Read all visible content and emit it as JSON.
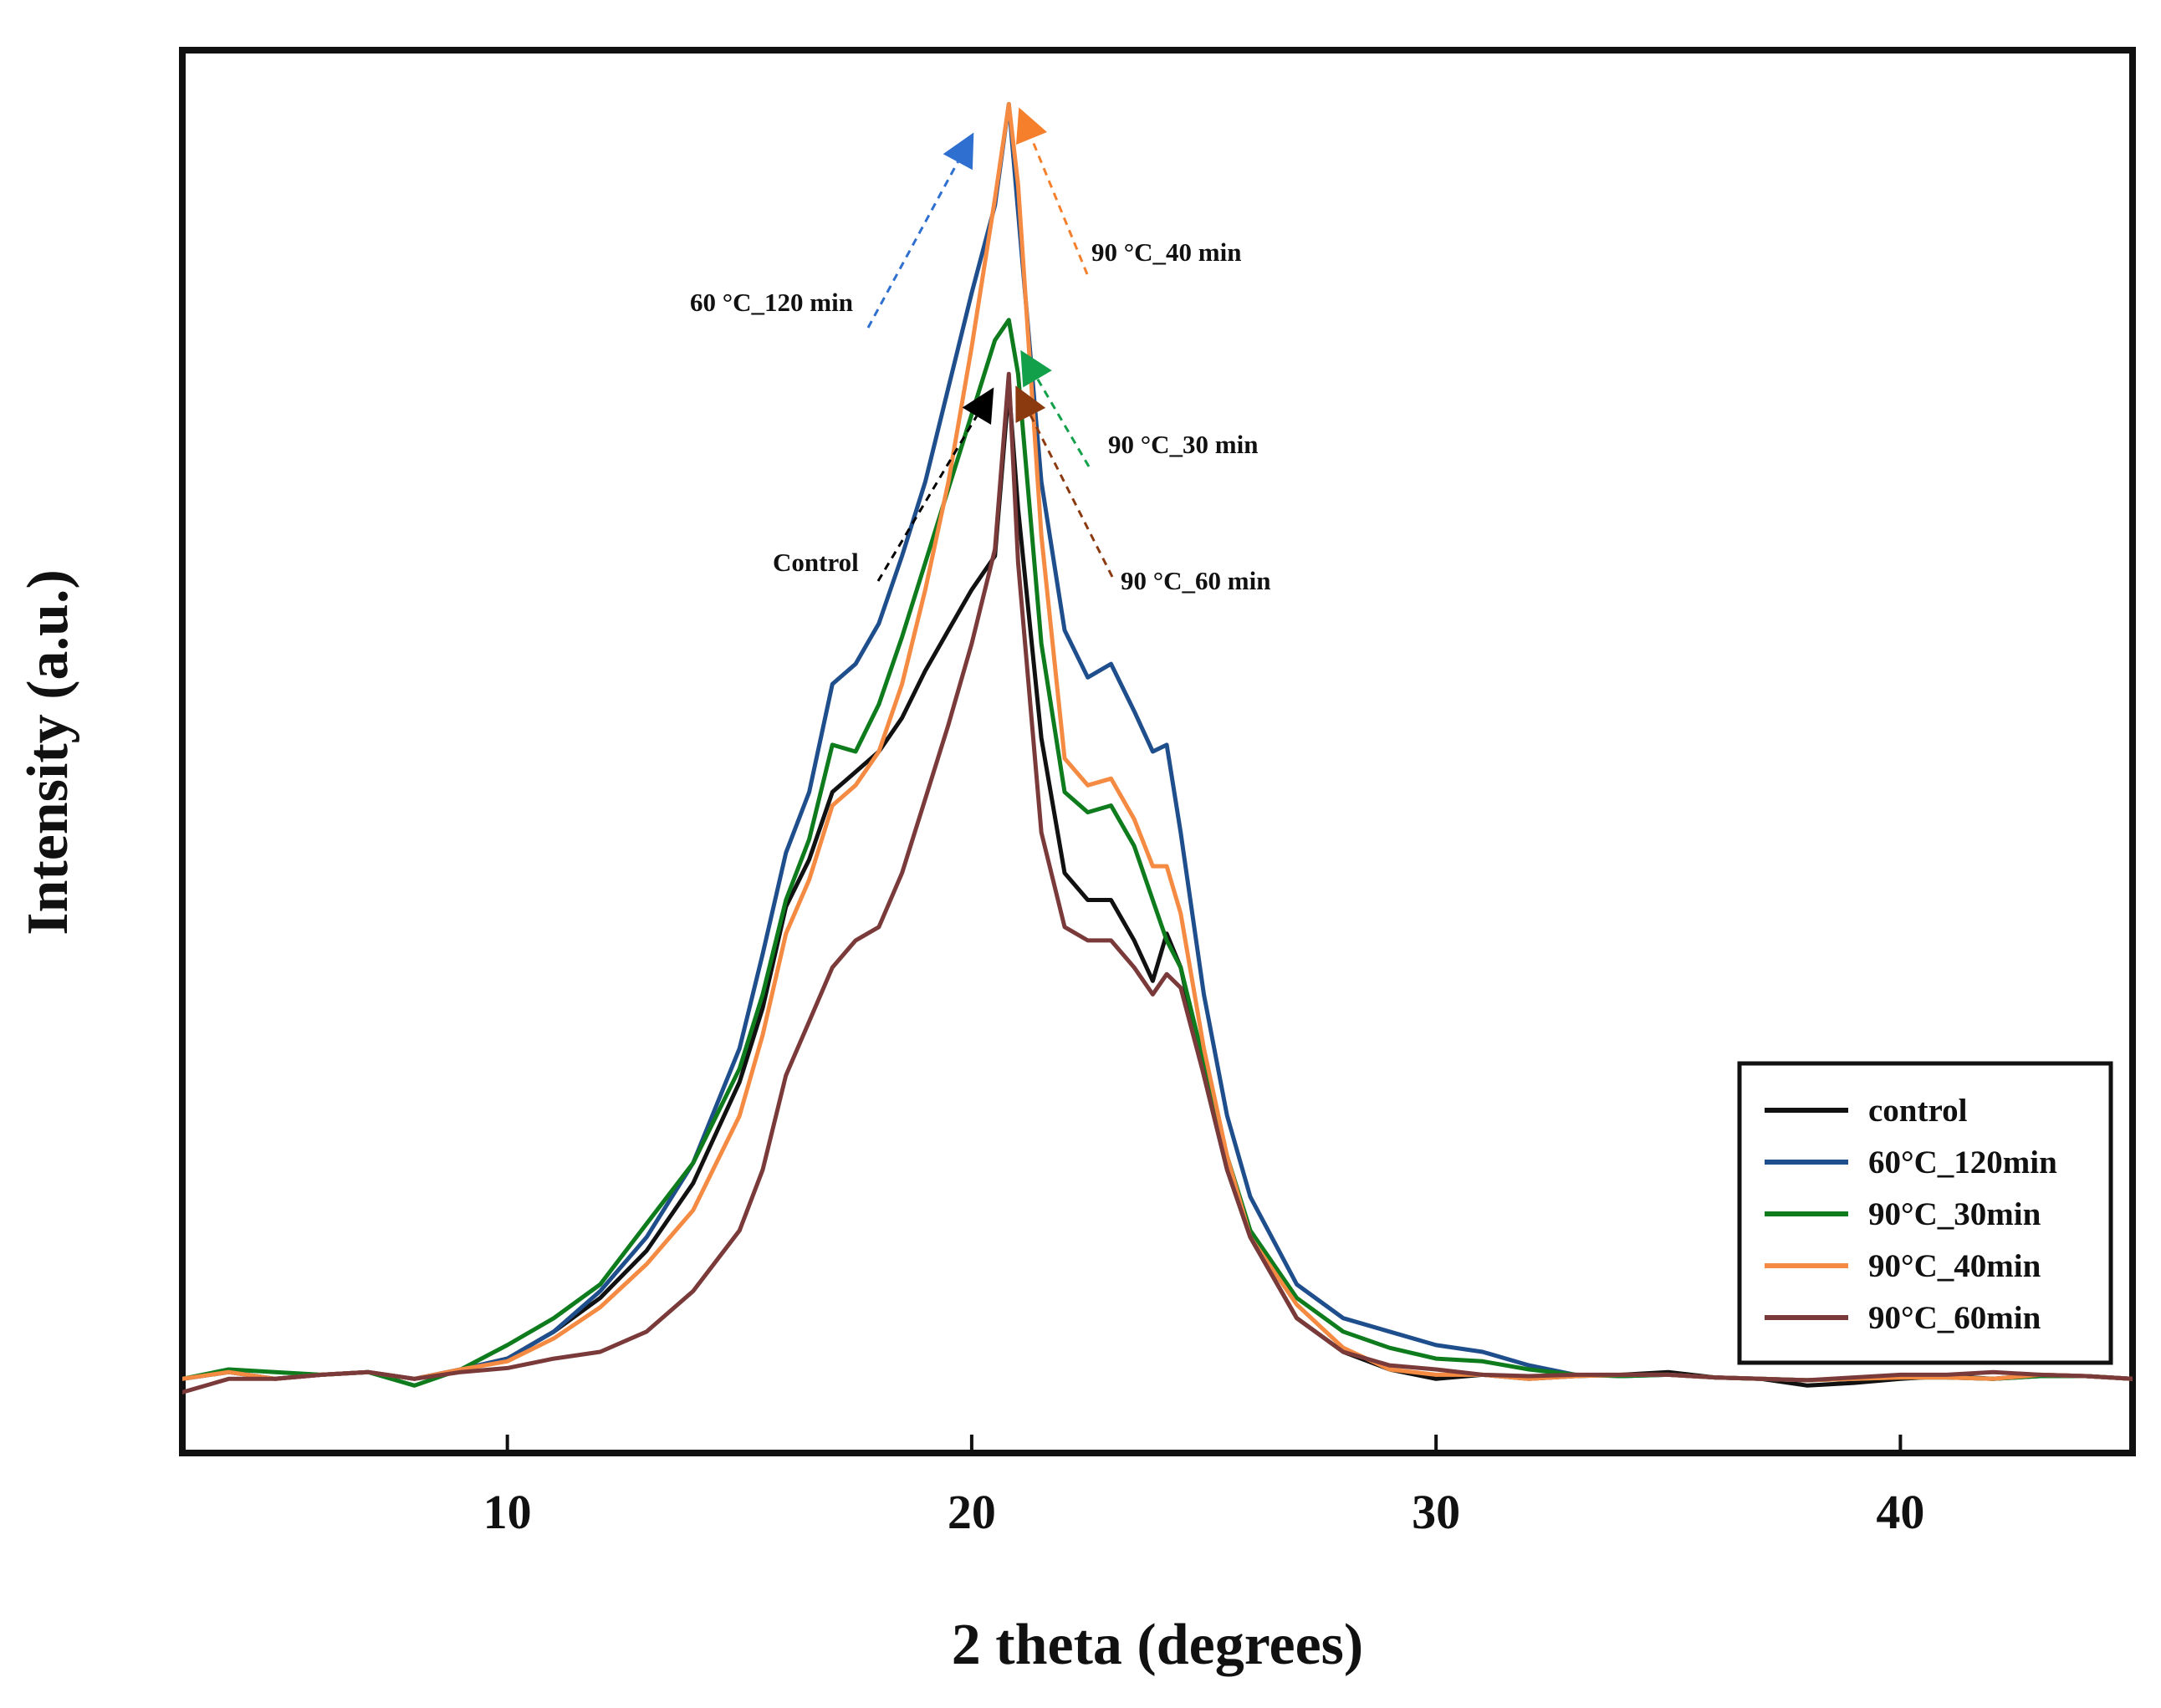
{
  "chart_data": {
    "type": "line",
    "title": "",
    "xlabel": "2 theta (degrees)",
    "ylabel": "Intensity (a.u.)",
    "xlim": [
      3,
      45
    ],
    "ylim": [
      0,
      1.04
    ],
    "xticks": [
      10,
      20,
      30,
      40
    ],
    "yticks": [],
    "grid": false,
    "legend": {
      "placement": "bottom-right",
      "entries": [
        {
          "label": "control",
          "series": "control"
        },
        {
          "label": "60°C_120min",
          "series": "60C_120min"
        },
        {
          "label": "90°C_30min",
          "series": "90C_30min"
        },
        {
          "label": "90°C_40min",
          "series": "90C_40min"
        },
        {
          "label": "90°C_60min",
          "series": "90C_60min"
        }
      ]
    },
    "series": [
      {
        "name": "control",
        "color": "#111111",
        "x": [
          3,
          4,
          5,
          6,
          7,
          8,
          9,
          10,
          11,
          12,
          13,
          14,
          15,
          15.5,
          16,
          16.5,
          17,
          17.5,
          18,
          18.5,
          19,
          19.5,
          20,
          20.5,
          20.8,
          21,
          21.5,
          22,
          22.5,
          23,
          23.5,
          23.9,
          24.2,
          24.5,
          25,
          25.5,
          26,
          27,
          28,
          29,
          30,
          31,
          32,
          33,
          34,
          35,
          36,
          37,
          38,
          39,
          40,
          41,
          42,
          43,
          44,
          45
        ],
        "y": [
          0.055,
          0.06,
          0.055,
          0.058,
          0.06,
          0.055,
          0.062,
          0.07,
          0.09,
          0.115,
          0.15,
          0.2,
          0.275,
          0.33,
          0.405,
          0.44,
          0.49,
          0.505,
          0.52,
          0.545,
          0.58,
          0.61,
          0.64,
          0.665,
          0.79,
          0.7,
          0.53,
          0.43,
          0.41,
          0.41,
          0.38,
          0.35,
          0.385,
          0.36,
          0.28,
          0.21,
          0.16,
          0.1,
          0.075,
          0.062,
          0.055,
          0.058,
          0.055,
          0.057,
          0.058,
          0.06,
          0.056,
          0.055,
          0.05,
          0.052,
          0.055,
          0.057,
          0.055,
          0.058,
          0.057,
          0.055
        ]
      },
      {
        "name": "60C_120min",
        "color": "#1f4e8c",
        "x": [
          3,
          4,
          5,
          6,
          7,
          8,
          9,
          10,
          11,
          12,
          13,
          14,
          15,
          15.5,
          16,
          16.5,
          17,
          17.5,
          18,
          18.5,
          19,
          19.5,
          20,
          20.5,
          20.8,
          21,
          21.5,
          22,
          22.5,
          23,
          23.5,
          23.9,
          24.2,
          24.5,
          25,
          25.5,
          26,
          27,
          28,
          29,
          30,
          31,
          32,
          33,
          34,
          35,
          36,
          37,
          38,
          39,
          40,
          41,
          42,
          43,
          44,
          45
        ],
        "y": [
          0.055,
          0.06,
          0.055,
          0.058,
          0.06,
          0.055,
          0.062,
          0.07,
          0.09,
          0.12,
          0.16,
          0.215,
          0.3,
          0.37,
          0.445,
          0.49,
          0.57,
          0.585,
          0.615,
          0.665,
          0.72,
          0.79,
          0.86,
          0.925,
          1.0,
          0.92,
          0.72,
          0.61,
          0.575,
          0.585,
          0.55,
          0.52,
          0.525,
          0.46,
          0.34,
          0.25,
          0.19,
          0.125,
          0.1,
          0.09,
          0.08,
          0.075,
          0.065,
          0.058,
          0.057,
          0.058,
          0.056,
          0.055,
          0.054,
          0.055,
          0.056,
          0.056,
          0.055,
          0.057,
          0.057,
          0.055
        ]
      },
      {
        "name": "90C_30min",
        "color": "#0e7b1d",
        "x": [
          3,
          4,
          5,
          6,
          7,
          8,
          9,
          10,
          11,
          12,
          13,
          14,
          15,
          15.5,
          16,
          16.5,
          17,
          17.5,
          18,
          18.5,
          19,
          19.5,
          20,
          20.5,
          20.8,
          21,
          21.5,
          22,
          22.5,
          23,
          23.5,
          23.9,
          24.2,
          24.5,
          25,
          25.5,
          26,
          27,
          28,
          29,
          30,
          31,
          32,
          33,
          34,
          35,
          36,
          37,
          38,
          39,
          40,
          41,
          42,
          43,
          44,
          45
        ],
        "y": [
          0.055,
          0.062,
          0.06,
          0.058,
          0.06,
          0.05,
          0.062,
          0.08,
          0.1,
          0.125,
          0.17,
          0.215,
          0.285,
          0.34,
          0.41,
          0.455,
          0.525,
          0.52,
          0.555,
          0.605,
          0.66,
          0.715,
          0.77,
          0.825,
          0.84,
          0.8,
          0.6,
          0.49,
          0.475,
          0.48,
          0.45,
          0.41,
          0.38,
          0.36,
          0.29,
          0.22,
          0.165,
          0.115,
          0.09,
          0.078,
          0.07,
          0.068,
          0.062,
          0.058,
          0.057,
          0.058,
          0.056,
          0.055,
          0.054,
          0.055,
          0.056,
          0.056,
          0.055,
          0.057,
          0.057,
          0.055
        ]
      },
      {
        "name": "90C_40min",
        "color": "#f58a42",
        "x": [
          3,
          4,
          5,
          6,
          7,
          8,
          9,
          10,
          11,
          12,
          13,
          14,
          15,
          15.5,
          16,
          16.5,
          17,
          17.5,
          18,
          18.5,
          19,
          19.5,
          20,
          20.5,
          20.8,
          21,
          21.5,
          22,
          22.5,
          23,
          23.5,
          23.9,
          24.2,
          24.5,
          25,
          25.5,
          26,
          27,
          28,
          29,
          30,
          31,
          32,
          33,
          34,
          35,
          36,
          37,
          38,
          39,
          40,
          41,
          42,
          43,
          44,
          45
        ],
        "y": [
          0.055,
          0.06,
          0.055,
          0.058,
          0.06,
          0.055,
          0.062,
          0.068,
          0.085,
          0.108,
          0.14,
          0.18,
          0.25,
          0.31,
          0.385,
          0.425,
          0.48,
          0.495,
          0.52,
          0.57,
          0.64,
          0.72,
          0.82,
          0.93,
          1.0,
          0.94,
          0.68,
          0.515,
          0.495,
          0.5,
          0.47,
          0.435,
          0.435,
          0.4,
          0.3,
          0.22,
          0.16,
          0.11,
          0.078,
          0.062,
          0.058,
          0.058,
          0.055,
          0.057,
          0.058,
          0.058,
          0.056,
          0.055,
          0.054,
          0.055,
          0.056,
          0.056,
          0.055,
          0.058,
          0.057,
          0.055
        ]
      },
      {
        "name": "90C_60min",
        "color": "#7b3a3a",
        "x": [
          3,
          4,
          5,
          6,
          7,
          8,
          9,
          10,
          11,
          12,
          13,
          14,
          15,
          15.5,
          16,
          16.5,
          17,
          17.5,
          18,
          18.5,
          19,
          19.5,
          20,
          20.5,
          20.8,
          21,
          21.5,
          22,
          22.5,
          23,
          23.5,
          23.9,
          24.2,
          24.5,
          25,
          25.5,
          26,
          27,
          28,
          29,
          30,
          31,
          32,
          33,
          34,
          35,
          36,
          37,
          38,
          39,
          40,
          41,
          42,
          43,
          44,
          45
        ],
        "y": [
          0.045,
          0.055,
          0.055,
          0.058,
          0.06,
          0.055,
          0.06,
          0.063,
          0.07,
          0.075,
          0.09,
          0.12,
          0.165,
          0.21,
          0.28,
          0.32,
          0.36,
          0.38,
          0.39,
          0.43,
          0.485,
          0.54,
          0.6,
          0.67,
          0.8,
          0.66,
          0.46,
          0.39,
          0.38,
          0.38,
          0.36,
          0.34,
          0.355,
          0.345,
          0.28,
          0.21,
          0.16,
          0.1,
          0.075,
          0.065,
          0.062,
          0.058,
          0.057,
          0.058,
          0.058,
          0.058,
          0.056,
          0.055,
          0.054,
          0.056,
          0.058,
          0.058,
          0.06,
          0.058,
          0.057,
          0.055
        ]
      }
    ],
    "annotations": [
      {
        "text": "60 °C_120 min",
        "series": "60C_120min",
        "color": "#2f6fd0"
      },
      {
        "text": "90 °C_40 min",
        "series": "90C_40min",
        "color": "#f57f2a"
      },
      {
        "text": "90 °C_30 min",
        "series": "90C_30min",
        "color": "#12a14a"
      },
      {
        "text": "Control",
        "series": "control",
        "color": "#000000"
      },
      {
        "text": "90 °C_60 min",
        "series": "90C_60min",
        "color": "#8b3a10"
      }
    ]
  }
}
